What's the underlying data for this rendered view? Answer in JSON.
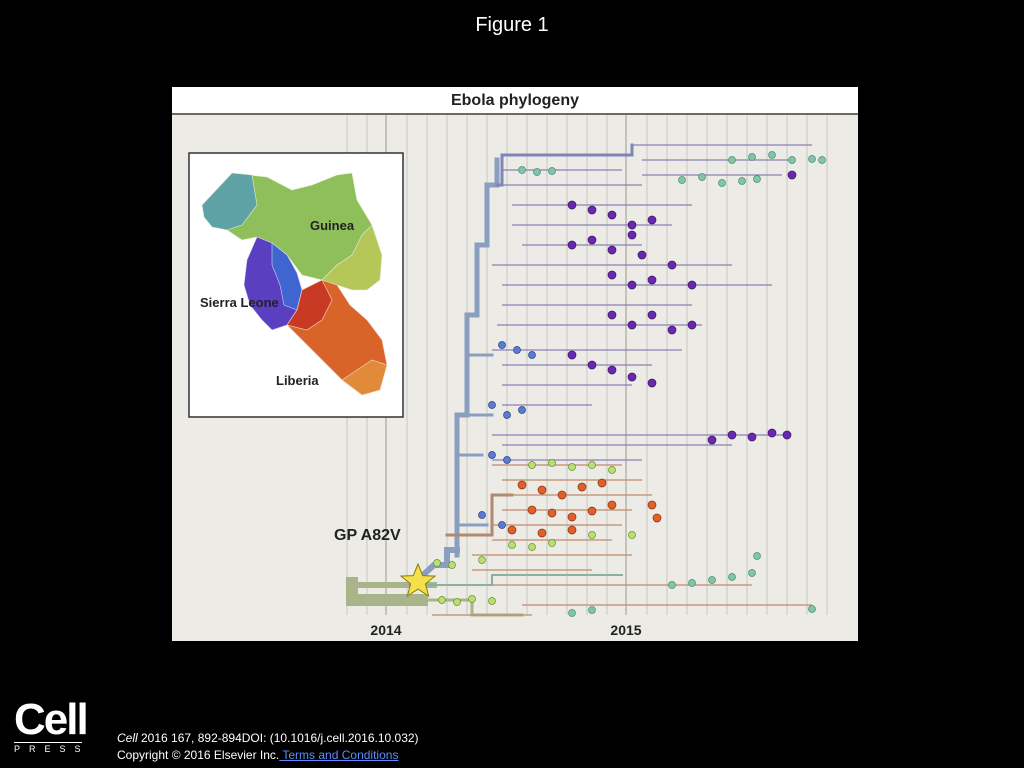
{
  "figure_title": "Figure 1",
  "panel": {
    "title": "Ebola phylogeny",
    "mutation_label": "GP A82V",
    "x_axis_ticks": [
      "2014",
      "2015"
    ],
    "inset_map": {
      "regions": [
        {
          "name": "Guinea",
          "color": "#8fbf5a"
        },
        {
          "name": "Sierra Leone",
          "color": "#5a3fc0"
        },
        {
          "name": "Liberia",
          "color": "#d9642a"
        }
      ]
    }
  },
  "footer": {
    "logo_word": "Cell",
    "logo_sub": "PRESS",
    "journal": "Cell",
    "citation_rest": " 2016 167, 892-894DOI: (10.1016/j.cell.2016.10.032)",
    "copyright": "Copyright © 2016 Elsevier Inc.",
    "terms_link": " Terms and Conditions"
  }
}
